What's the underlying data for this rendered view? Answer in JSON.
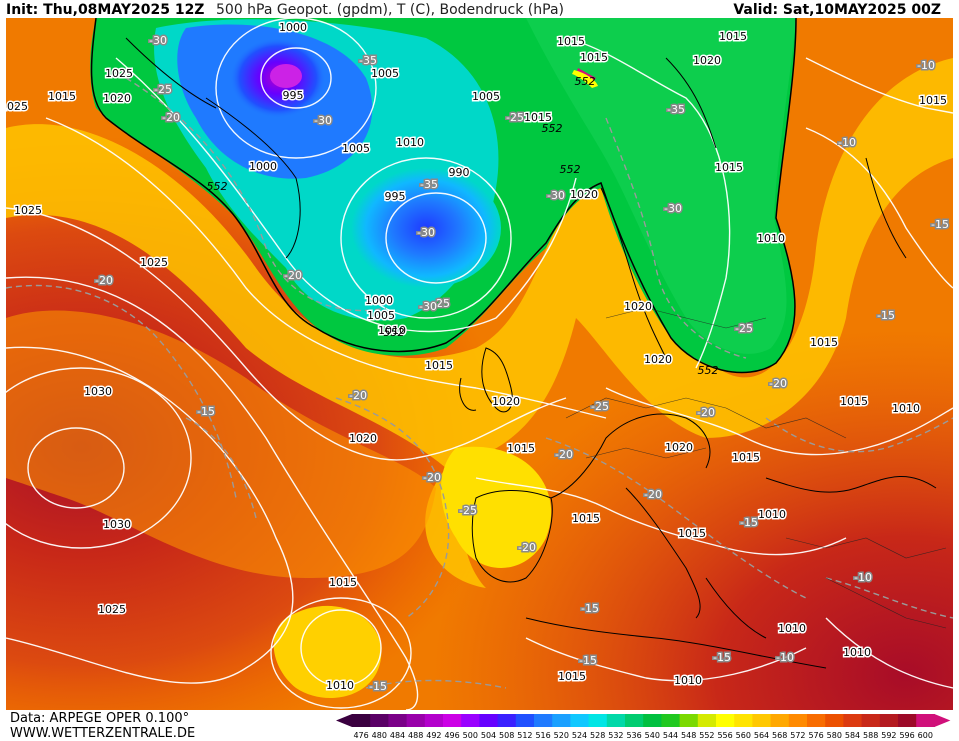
{
  "header": {
    "init": "Init: Thu,08MAY2025 12Z",
    "title": "500 hPa Geopot. (gpdm), T (C), Bodendruck (hPa)",
    "valid": "Valid: Sat,10MAY2025 00Z"
  },
  "footer": {
    "source": "Data: ARPEGE OPER 0.100°",
    "site": "WWW.WETTERZENTRALE.DE"
  },
  "legend": {
    "values": [
      "476",
      "480",
      "484",
      "488",
      "492",
      "496",
      "500",
      "504",
      "508",
      "512",
      "516",
      "520",
      "524",
      "528",
      "532",
      "536",
      "540",
      "544",
      "548",
      "552",
      "556",
      "560",
      "564",
      "568",
      "572",
      "576",
      "580",
      "584",
      "588",
      "592",
      "596",
      "600"
    ],
    "colors": [
      "#3a003f",
      "#5a0066",
      "#7a0088",
      "#9900aa",
      "#b300cc",
      "#cc00e6",
      "#9a00ff",
      "#6600ff",
      "#3a20ff",
      "#2050ff",
      "#1f7aff",
      "#1aa0ff",
      "#10c8ff",
      "#00e5e5",
      "#00d8a8",
      "#00cc70",
      "#00c040",
      "#20c820",
      "#7ad900",
      "#d4ea00",
      "#ffff00",
      "#ffe400",
      "#ffc800",
      "#ffa800",
      "#ff8a00",
      "#f86c00",
      "#ec5000",
      "#dc3a10",
      "#c82818",
      "#b41a20",
      "#9c0a28",
      "#d0107a"
    ]
  },
  "map": {
    "isobar_labels": [
      "1000",
      "1025",
      "1015",
      "1020",
      "995",
      "1005",
      "1015",
      "1020",
      "1000",
      "1005",
      "1010",
      "990",
      "995",
      "1015",
      "1020",
      "1025",
      "1030",
      "1030",
      "1025",
      "1015",
      "1010",
      "1015",
      "1020",
      "1015",
      "1020",
      "1015",
      "1020",
      "1015",
      "1015",
      "1010",
      "1010",
      "1010",
      "1010",
      "1015",
      "1015",
      "1015",
      "1010",
      "1020",
      "1020",
      "1015",
      "1025",
      "1000",
      "1005",
      "1010",
      "1025",
      "1015",
      "1015",
      "1010",
      "1005",
      "1015"
    ],
    "temp_labels": [
      "-30",
      "-35",
      "-25",
      "-20",
      "-30",
      "-35",
      "-25",
      "-30",
      "-25",
      "-35",
      "-30",
      "-25",
      "-30",
      "-20",
      "-20",
      "-15",
      "-20",
      "-25",
      "-20",
      "-20",
      "-25",
      "-20",
      "-15",
      "-15",
      "-15",
      "-15",
      "-10",
      "-10",
      "-10",
      "-10",
      "-20",
      "-15",
      "-15",
      "-30",
      "-20",
      "-20",
      "-15"
    ],
    "geopot_labels": [
      "552",
      "552",
      "552",
      "552",
      "552",
      "552"
    ]
  }
}
